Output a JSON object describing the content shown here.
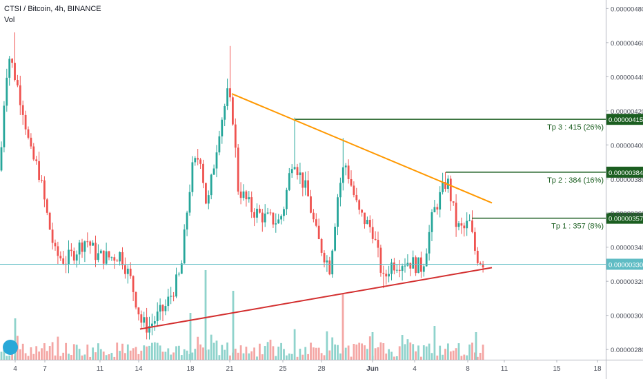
{
  "header": {
    "symbol_line": "CTSI / Bitcoin, 4h, BINANCE",
    "indicator": "Vol"
  },
  "colors": {
    "up": "#26a69a",
    "down": "#ef5350",
    "vol_up": "#8fd3cc",
    "vol_down": "#f4a6a4",
    "target": "#1b5e20",
    "resistance": "#ff9800",
    "support": "#d32f2f",
    "current": "#5fbcc4"
  },
  "chart_data": {
    "type": "candlestick",
    "symbol": "CTSI / Bitcoin",
    "interval": "4h",
    "exchange": "BINANCE",
    "x_ticks": [
      "4",
      "7",
      "11",
      "14",
      "18",
      "21",
      "25",
      "28",
      "Jun",
      "4",
      "8",
      "11",
      "15",
      "18"
    ],
    "y_ticks": [
      "0.00000280",
      "0.00000300",
      "0.00000320",
      "0.00000340",
      "0.00000360",
      "0.00000380",
      "0.00000400",
      "0.00000420",
      "0.00000440",
      "0.00000460",
      "0.00000480"
    ],
    "ylim": [
      2.74e-06,
      4.85e-06
    ],
    "price_range": {
      "high": 4.66e-06,
      "low": 2.92e-06,
      "last": 3.3e-06
    },
    "targets": [
      {
        "label": "Tp 3 : 415 (26%)",
        "price": "0.00000415",
        "value": 4.15e-06
      },
      {
        "label": "Tp 2 : 384 (16%)",
        "price": "0.00000384",
        "value": 3.84e-06
      },
      {
        "label": "Tp 1 : 357 (8%)",
        "price": "0.00000357",
        "value": 3.57e-06
      }
    ],
    "current_price": {
      "label": "0.00000330",
      "value": 3.3e-06
    },
    "trendlines": [
      {
        "name": "resistance",
        "from": [
          "21",
          4.3e-06
        ],
        "to": [
          "8+",
          3.66e-06
        ]
      },
      {
        "name": "support",
        "from": [
          "14",
          2.92e-06
        ],
        "to": [
          "8+",
          3.28e-06
        ]
      }
    ]
  }
}
